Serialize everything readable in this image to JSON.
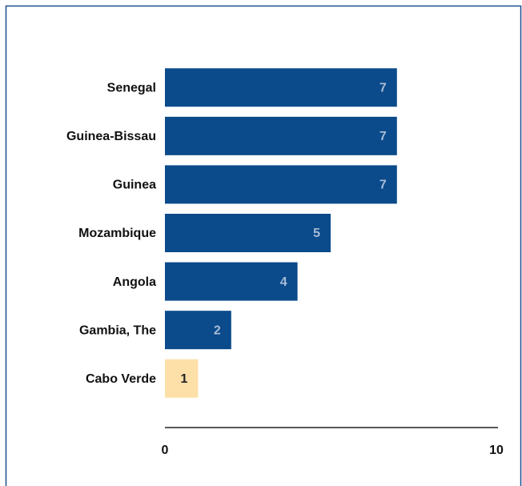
{
  "chart_data": {
    "type": "bar",
    "orientation": "horizontal",
    "categories": [
      "Senegal",
      "Guinea-Bissau",
      "Guinea",
      "Mozambique",
      "Angola",
      "Gambia, The",
      "Cabo Verde"
    ],
    "values": [
      7,
      7,
      7,
      5,
      4,
      2,
      1
    ],
    "colors": [
      "#0b4a8b",
      "#0b4a8b",
      "#0b4a8b",
      "#0b4a8b",
      "#0b4a8b",
      "#0b4a8b",
      "#fddfa8"
    ],
    "xlim": [
      0,
      10
    ],
    "xticks": [
      0,
      10
    ]
  }
}
